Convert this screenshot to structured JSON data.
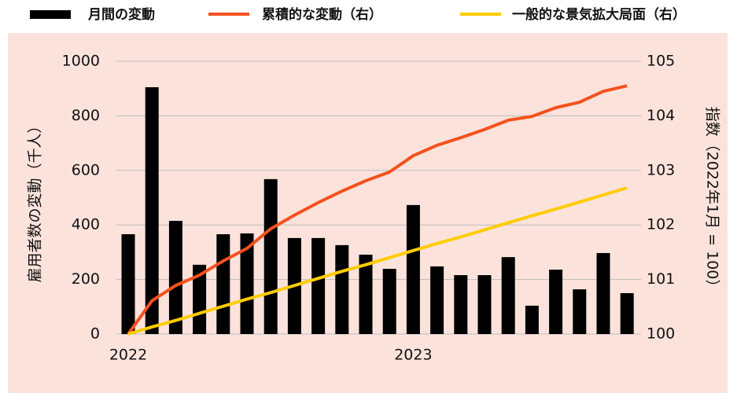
{
  "chart_data": {
    "type": "bar",
    "categories": [
      "2022",
      null,
      null,
      null,
      null,
      null,
      null,
      null,
      null,
      null,
      null,
      null,
      "2023",
      null,
      null,
      null,
      null,
      null,
      null,
      null,
      null,
      null
    ],
    "series": [
      {
        "name": "月間の変動",
        "color": "#000000",
        "type": "bar",
        "values": [
          366,
          905,
          415,
          254,
          366,
          369,
          568,
          352,
          352,
          326,
          291,
          239,
          473,
          248,
          216,
          216,
          282,
          104,
          236,
          164,
          297,
          150
        ]
      },
      {
        "name": "累積的な変動（右）",
        "color": "#f4511e",
        "type": "line",
        "axis": "y2",
        "values": [
          100,
          100.61,
          100.89,
          101.08,
          101.34,
          101.57,
          101.93,
          102.18,
          102.41,
          102.62,
          102.81,
          102.97,
          103.27,
          103.46,
          103.6,
          103.75,
          103.92,
          103.99,
          104.15,
          104.25,
          104.45,
          104.55
        ]
      },
      {
        "name": "一般的な景気拡大局面（右）",
        "color": "#ffcc00",
        "type": "line",
        "axis": "y2",
        "values": [
          100,
          100.13,
          100.25,
          100.38,
          100.51,
          100.64,
          100.76,
          100.89,
          101.02,
          101.15,
          101.27,
          101.4,
          101.53,
          101.66,
          101.78,
          101.91,
          102.04,
          102.17,
          102.29,
          102.42,
          102.55,
          102.68
        ]
      }
    ],
    "y_label": "雇用者数の変動（千人）",
    "y2_label": "指数（2022年1月 = 100）",
    "ylim": [
      0,
      1000
    ],
    "yticks": [
      0,
      200,
      400,
      600,
      800,
      1000
    ],
    "y2lim": [
      100,
      105
    ],
    "y2ticks": [
      100,
      101,
      102,
      103,
      104,
      105
    ],
    "grid": true,
    "legend": "top"
  }
}
